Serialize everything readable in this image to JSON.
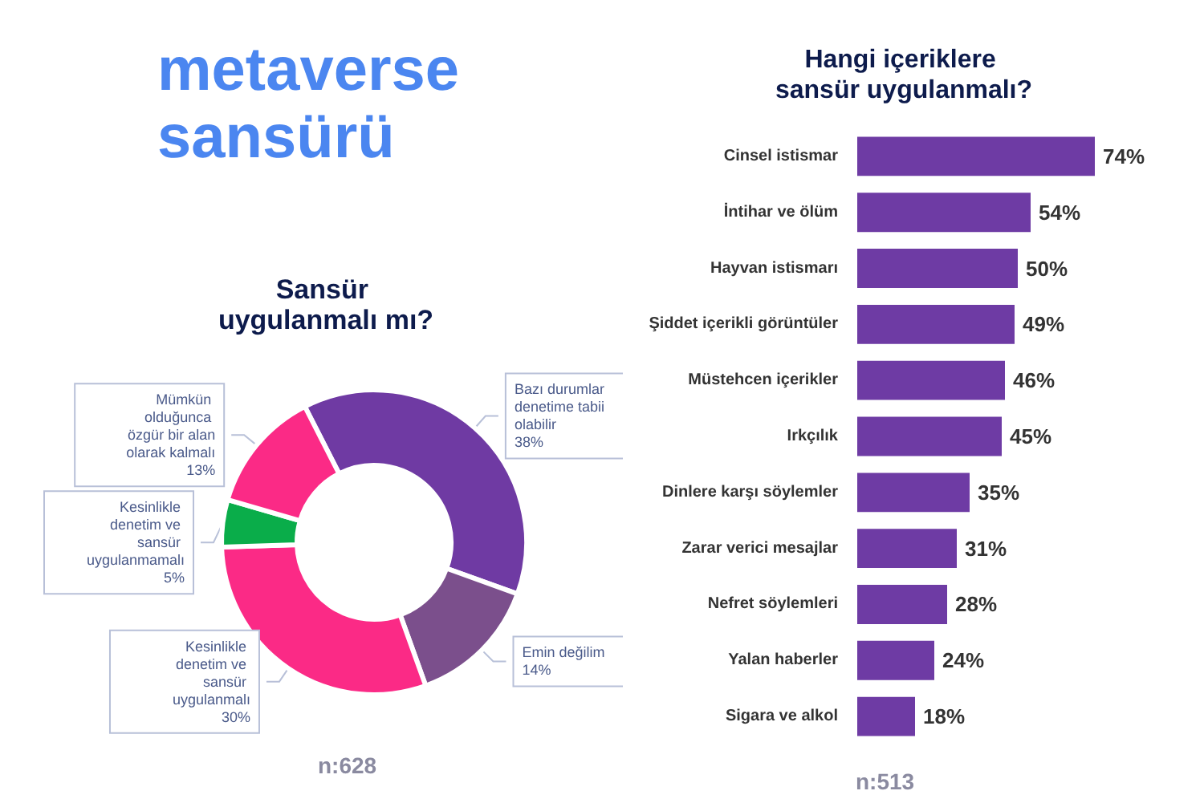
{
  "chart_data": [
    {
      "type": "donut",
      "title": "metaverse sansürü",
      "subtitle": "Sansür uygulanmalı mı?",
      "categories": [
        "Bazı durumlar denetime tabii olabilir",
        "Emin değilim",
        "Kesinlikle denetim ve sansür uygulanmalı",
        "Kesinlikle denetim ve sansür uygulanmamalı",
        "Mümkün olduğunca özgür bir alan olarak kalmalı"
      ],
      "values": [
        38,
        14,
        30,
        5,
        13
      ],
      "value_labels": [
        "38%",
        "14%",
        "30%",
        "5%",
        "13%"
      ],
      "colors": [
        "#6f3aa3",
        "#7b4f8c",
        "#fb2a86",
        "#0aad4a",
        "#fb2a86"
      ],
      "annotations": [
        "n:628"
      ],
      "legend": false
    },
    {
      "type": "bar",
      "orientation": "horizontal",
      "title": "Hangi içeriklere sansür uygulanmalı?",
      "categories": [
        "Cinsel istismar",
        "İntihar ve ölüm",
        "Hayvan istismarı",
        "Şiddet içerikli görüntüler",
        "Müstehcen içerikler",
        "Irkçılık",
        "Dinlere karşı söylemler",
        "Zarar verici mesajlar",
        "Nefret söylemleri",
        "Yalan haberler",
        "Sigara ve alkol"
      ],
      "values": [
        74,
        54,
        50,
        49,
        46,
        45,
        35,
        31,
        28,
        24,
        18
      ],
      "value_labels": [
        "74%",
        "54%",
        "50%",
        "49%",
        "46%",
        "45%",
        "35%",
        "31%",
        "28%",
        "24%",
        "18%"
      ],
      "color": "#6e3ba4",
      "annotations": [
        "n:513"
      ],
      "legend": false
    }
  ]
}
